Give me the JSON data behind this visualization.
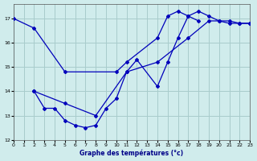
{
  "title": "Graphe des températures (°c)",
  "bg_color": "#d0ecec",
  "grid_color": "#a8cccc",
  "line_color": "#0000bb",
  "line1_x": [
    0,
    2,
    5,
    10,
    11,
    14,
    15,
    16,
    17,
    18
  ],
  "line1_y": [
    17.0,
    16.6,
    14.8,
    14.8,
    15.2,
    16.2,
    17.1,
    17.3,
    17.1,
    16.9
  ],
  "line2_x": [
    2,
    3,
    4,
    5,
    6,
    7,
    8,
    9,
    10,
    11,
    12,
    14,
    15,
    16,
    17,
    18,
    19,
    20,
    21,
    22,
    23
  ],
  "line2_y": [
    14.0,
    13.3,
    13.3,
    12.8,
    12.6,
    12.5,
    12.6,
    13.3,
    13.7,
    14.8,
    15.3,
    14.2,
    15.2,
    16.2,
    17.1,
    17.3,
    17.1,
    16.9,
    16.9,
    16.8,
    16.8
  ],
  "line3_x": [
    2,
    5,
    8,
    11,
    14,
    17,
    19,
    20,
    21,
    22,
    23
  ],
  "line3_y": [
    14.0,
    13.5,
    13.0,
    14.8,
    15.2,
    16.2,
    16.9,
    16.9,
    16.8,
    16.8,
    16.8
  ],
  "ylim": [
    12,
    17.6
  ],
  "xlim": [
    0,
    23
  ],
  "yticks": [
    12,
    13,
    14,
    15,
    16,
    17
  ],
  "xticks": [
    0,
    1,
    2,
    3,
    4,
    5,
    6,
    7,
    8,
    9,
    10,
    11,
    12,
    13,
    14,
    15,
    16,
    17,
    18,
    19,
    20,
    21,
    22,
    23
  ]
}
